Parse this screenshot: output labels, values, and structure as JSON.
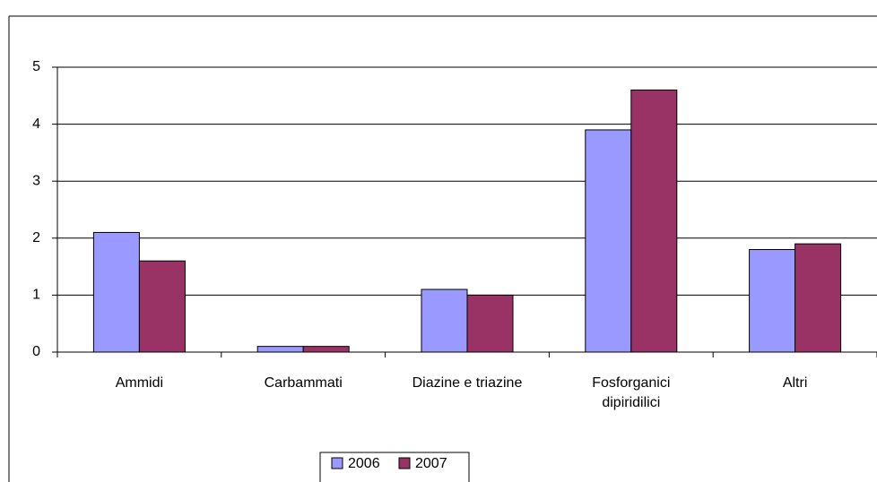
{
  "chart_data": {
    "type": "bar",
    "categories": [
      "Ammidi",
      "Carbammati",
      "Diazine e triazine",
      "Fosforganici\ndipiridilici",
      "Altri"
    ],
    "series": [
      {
        "name": "2006",
        "color": "#9999ff",
        "values": [
          2.1,
          0.1,
          1.1,
          3.9,
          1.8
        ]
      },
      {
        "name": "2007",
        "color": "#993366",
        "values": [
          1.6,
          0.1,
          1.0,
          4.6,
          1.9
        ]
      }
    ],
    "ylim": [
      0,
      5
    ],
    "yticks": [
      0,
      1,
      2,
      3,
      4,
      5
    ],
    "grid": true,
    "legend": "bottom"
  }
}
